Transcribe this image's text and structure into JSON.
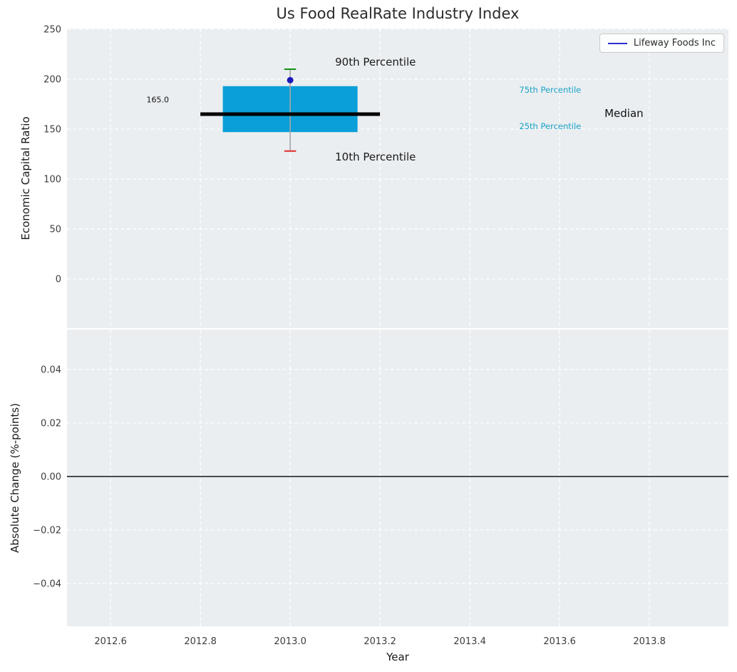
{
  "style": {
    "axes_bg": "#eaeef1",
    "grid_color": "#ffffff",
    "tick_color": "#3d3d3d",
    "title_color": "#2b2b2b",
    "axis_label_color": "#1a1a1a",
    "zero_line_color": "#000000"
  },
  "chart_data": [
    {
      "type": "boxplot",
      "title": "Us Food RealRate Industry Index",
      "ylabel": "Economic Capital Ratio",
      "legend": [
        "Lifeway Foods Inc"
      ],
      "x": 2013.0,
      "xlim": [
        2012.503,
        2013.976
      ],
      "ylim": [
        -49.3,
        250.7
      ],
      "xticks": [
        2012.6,
        2012.8,
        2013.0,
        2013.2,
        2013.4,
        2013.6,
        2013.8
      ],
      "xtick_labels": [
        "2012.6",
        "2012.8",
        "2013.0",
        "2013.2",
        "2013.4",
        "2013.6",
        "2013.8"
      ],
      "yticks": [
        0,
        50,
        100,
        150,
        200,
        250
      ],
      "ytick_labels": [
        "0",
        "50",
        "100",
        "150",
        "200",
        "250"
      ],
      "grid": true,
      "box": {
        "p10": 128,
        "p25": 147,
        "median": 165.0,
        "p75": 193,
        "p90": 210,
        "box_halfwidth": 0.15,
        "median_halfwidth": 0.2,
        "cap_halfwidth": 0.013
      },
      "company_point": {
        "name": "Lifeway Foods Inc",
        "x": 2013.0,
        "value": 199
      },
      "median_value_label": "165.0",
      "colors": {
        "box": "#0a9fd8",
        "median": "#000000",
        "whisker": "#a6a6a6",
        "p90_cap": "#0f930f",
        "p10_cap": "#e02b2b",
        "point": "#1a1ab8",
        "legend_line": "#2d2dce",
        "percentile_text": "#1ba3c6"
      },
      "annotations": [
        {
          "id": "p90-label",
          "text": "90th Percentile",
          "x": 2013.1,
          "y": 217,
          "color": "#1a1a1a",
          "size": 15
        },
        {
          "id": "p10-label",
          "text": "10th Percentile",
          "x": 2013.1,
          "y": 122,
          "color": "#1a1a1a",
          "size": 15
        },
        {
          "id": "p75-label",
          "text": "75th Percentile",
          "x": 2013.51,
          "y": 189,
          "color": "#1ba3c6",
          "size": 11.5
        },
        {
          "id": "p25-label",
          "text": "25th Percentile",
          "x": 2013.51,
          "y": 153,
          "color": "#1ba3c6",
          "size": 11.5
        },
        {
          "id": "median-label",
          "text": "Median",
          "x": 2013.7,
          "y": 166,
          "color": "#111111",
          "size": 15
        },
        {
          "id": "median-value-label",
          "text": "165.0",
          "x": 2012.68,
          "y": 179,
          "color": "#111111",
          "size": 11
        }
      ]
    },
    {
      "type": "line",
      "ylabel": "Absolute Change (%-points)",
      "xlabel": "Year",
      "zero_line": 0.0,
      "xlim": [
        2012.503,
        2013.976
      ],
      "ylim": [
        -0.056,
        0.0549
      ],
      "xticks": [
        2012.6,
        2012.8,
        2013.0,
        2013.2,
        2013.4,
        2013.6,
        2013.8
      ],
      "xtick_labels": [
        "2012.6",
        "2012.8",
        "2013.0",
        "2013.2",
        "2013.4",
        "2013.6",
        "2013.8"
      ],
      "yticks": [
        0.04,
        0.02,
        0.0,
        -0.02,
        -0.04
      ],
      "ytick_labels": [
        "0.04",
        "0.02",
        "0.00",
        "−0.02",
        "−0.04"
      ],
      "grid": true
    }
  ]
}
